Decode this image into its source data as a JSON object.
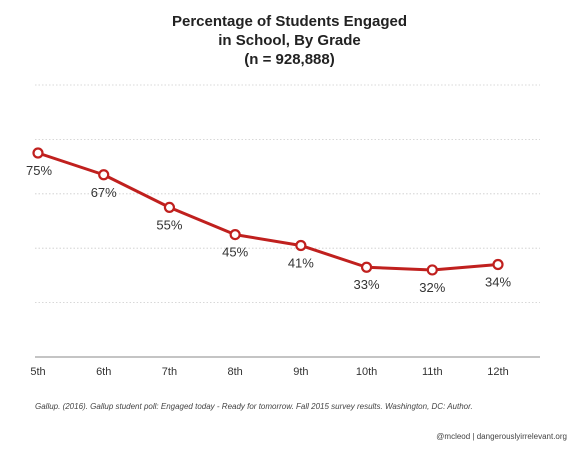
{
  "chart_data": {
    "type": "line",
    "title_lines": [
      "Percentage of Students Engaged",
      "in School, By Grade",
      "(n = 928,888)"
    ],
    "categories": [
      "5th",
      "6th",
      "7th",
      "8th",
      "9th",
      "10th",
      "11th",
      "12th"
    ],
    "series": [
      {
        "values": [
          75,
          67,
          55,
          45,
          41,
          33,
          32,
          34
        ],
        "labels": [
          "75%",
          "67%",
          "55%",
          "45%",
          "41%",
          "33%",
          "32%",
          "34%"
        ],
        "color": "#c0201e"
      }
    ],
    "ylim": [
      0,
      100
    ],
    "grid": true,
    "gridline_color": "#cccccc",
    "y_axis_ticks_shown": false
  },
  "source_note": "Gallup. (2016). Gallup student poll: Engaged today - Ready for tomorrow. Fall 2015 survey results. Washington, DC: Author.",
  "credit": "@mcleod | dangerouslyirrelevant.org"
}
